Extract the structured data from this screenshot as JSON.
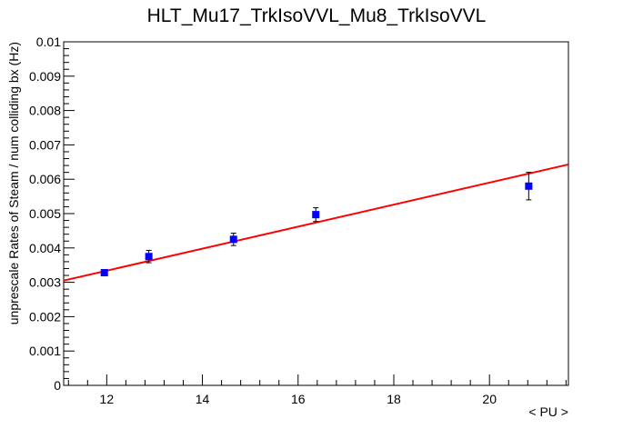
{
  "chart_data": {
    "type": "scatter",
    "title": "HLT_Mu17_TrkIsoVVL_Mu8_TrkIsoVVL",
    "xlabel": "< PU >",
    "ylabel": "unprescale Rates of Steam / num colliding bx (Hz)",
    "xlim": [
      11.1,
      21.65
    ],
    "ylim": [
      0,
      0.01
    ],
    "x_ticks": [
      12,
      14,
      16,
      18,
      20
    ],
    "y_ticks": [
      0,
      0.001,
      0.002,
      0.003,
      0.004,
      0.005,
      0.006,
      0.007,
      0.008,
      0.009,
      0.01
    ],
    "x_tick_labels": [
      "12",
      "14",
      "16",
      "18",
      "20"
    ],
    "y_tick_labels": [
      "0",
      "0.001",
      "0.002",
      "0.003",
      "0.004",
      "0.005",
      "0.006",
      "0.007",
      "0.008",
      "0.009",
      "0.01"
    ],
    "points": [
      {
        "x": 11.95,
        "y": 0.00328,
        "err": 6e-05
      },
      {
        "x": 12.88,
        "y": 0.00375,
        "err": 0.00018
      },
      {
        "x": 14.65,
        "y": 0.00425,
        "err": 0.00018
      },
      {
        "x": 16.37,
        "y": 0.00497,
        "err": 0.0002
      },
      {
        "x": 20.82,
        "y": 0.0058,
        "err": 0.0004
      }
    ],
    "fit": {
      "x0": 11.1,
      "y0": 0.00305,
      "x1": 21.65,
      "y1": 0.00643
    },
    "marker_color": "#0000ff",
    "fit_color": "#ff0000",
    "grid": false
  }
}
